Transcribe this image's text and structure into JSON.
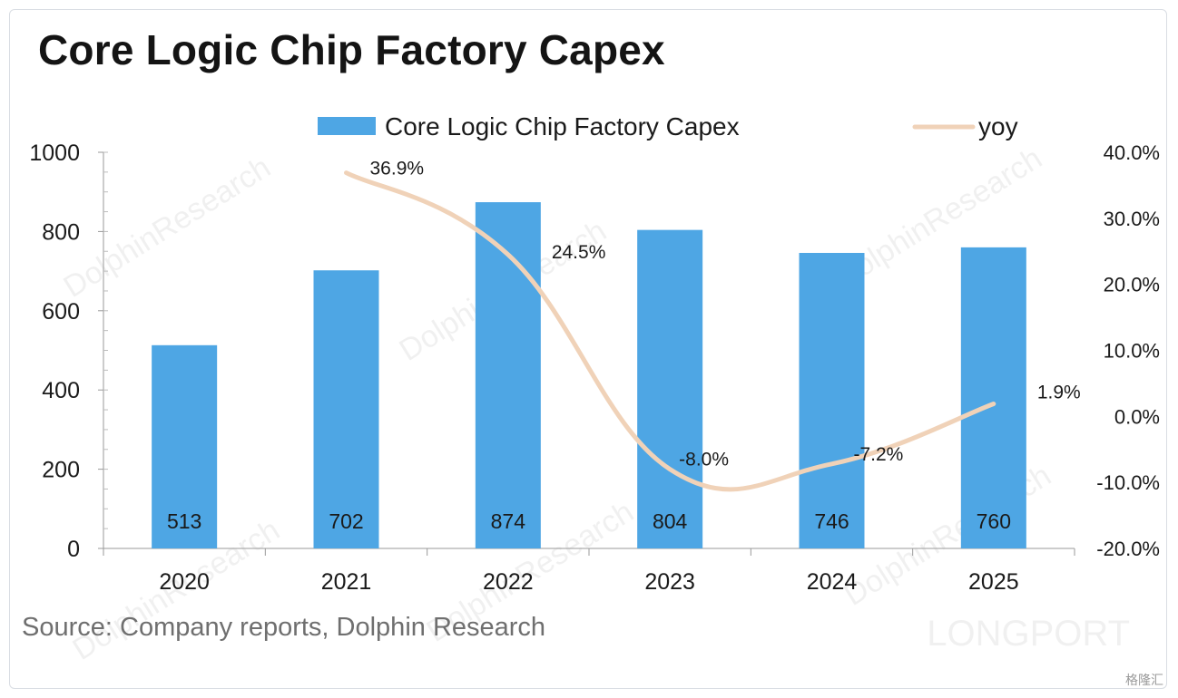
{
  "title": "Core Logic Chip Factory Capex",
  "source": "Source: Company reports, Dolphin Research",
  "watermarks": [
    "DolphinResearch",
    "LONGPORT"
  ],
  "corner_logo": "格隆汇",
  "colors": {
    "bar": "#4ea6e4",
    "line": "#f0d2b8",
    "text": "#1a1a1a"
  },
  "chart_data": {
    "type": "bar",
    "title": "Core Logic Chip Factory Capex",
    "categories": [
      "2020",
      "2021",
      "2022",
      "2023",
      "2024",
      "2025"
    ],
    "series": [
      {
        "name": "Core Logic Chip Factory Capex",
        "type": "bar",
        "axis": "left",
        "values": [
          513,
          702,
          874,
          804,
          746,
          760
        ],
        "labels": [
          "513",
          "702",
          "874",
          "804",
          "746",
          "760"
        ]
      },
      {
        "name": "yoy",
        "type": "line",
        "axis": "right",
        "values": [
          null,
          36.9,
          24.5,
          -8.0,
          -7.2,
          1.9
        ],
        "labels": [
          null,
          "36.9%",
          "24.5%",
          "-8.0%",
          "-7.2%",
          "1.9%"
        ]
      }
    ],
    "y_left": {
      "min": 0,
      "max": 1000,
      "ticks": [
        "0",
        "200",
        "400",
        "600",
        "800",
        "1000"
      ]
    },
    "y_right": {
      "min": -20,
      "max": 40,
      "ticks": [
        "-20.0%",
        "-10.0%",
        "0.0%",
        "10.0%",
        "20.0%",
        "30.0%",
        "40.0%"
      ]
    },
    "legend_position": "top",
    "grid": false
  }
}
